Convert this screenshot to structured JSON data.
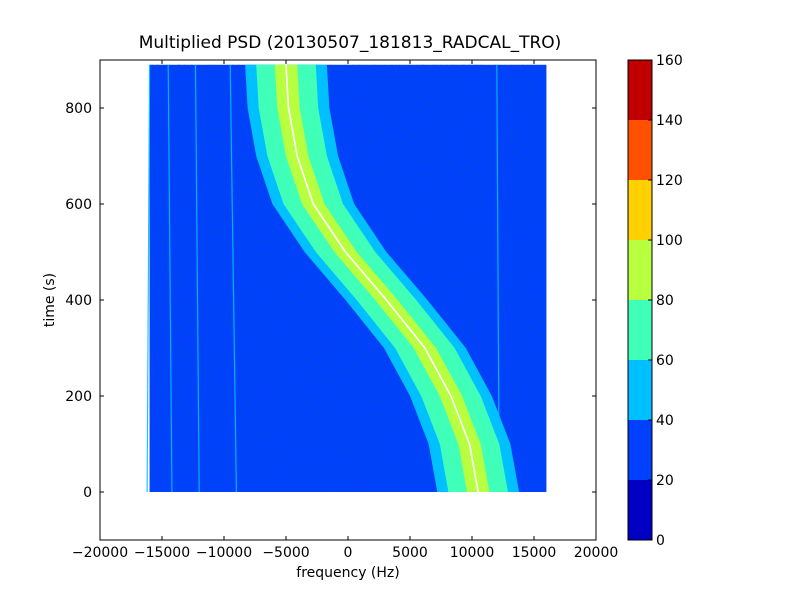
{
  "chart_data": [
    {
      "type": "heatmap",
      "title": "Multiplied PSD (20130507_181813_RADCAL_TRO)",
      "xlabel": "frequency (Hz)",
      "ylabel": "time (s)",
      "xlim": [
        -20000,
        20000
      ],
      "ylim": [
        -100,
        900
      ],
      "xticks": [
        -20000,
        -15000,
        -10000,
        -5000,
        0,
        5000,
        10000,
        15000,
        20000
      ],
      "yticks": [
        0,
        200,
        400,
        600,
        800
      ],
      "data_extent": {
        "x": [
          -16000,
          16000
        ],
        "y": [
          0,
          890
        ]
      },
      "grid": false,
      "colormap": "jet",
      "background_level": 20,
      "signal_track": {
        "description": "S-shaped Doppler track",
        "center_points": [
          {
            "time": 0,
            "frequency": 10500
          },
          {
            "time": 100,
            "frequency": 9800
          },
          {
            "time": 200,
            "frequency": 8300
          },
          {
            "time": 300,
            "frequency": 6200
          },
          {
            "time": 400,
            "frequency": 3100
          },
          {
            "time": 500,
            "frequency": -200
          },
          {
            "time": 600,
            "frequency": -2800
          },
          {
            "time": 700,
            "frequency": -4100
          },
          {
            "time": 800,
            "frequency": -4800
          },
          {
            "time": 890,
            "frequency": -5000
          }
        ],
        "band_levels": [
          {
            "half_width_hz": 3300,
            "level": 50
          },
          {
            "half_width_hz": 2400,
            "level": 70
          },
          {
            "half_width_hz": 900,
            "level": 85
          }
        ],
        "peak_level": 100
      },
      "vertical_lines": [
        {
          "freq_start": -16200,
          "freq_end": -16000,
          "level": 40
        },
        {
          "freq_start": -14200,
          "freq_end": -14500,
          "level": 40
        },
        {
          "freq_start": -12000,
          "freq_end": -12300,
          "level": 40
        },
        {
          "freq_start": -9000,
          "freq_end": -9500,
          "level": 50
        },
        {
          "freq_start": 12200,
          "freq_end": 12000,
          "level": 40
        }
      ],
      "colorbar": {
        "min": 0,
        "max": 160,
        "ticks": [
          "0",
          "20",
          "40",
          "60",
          "80",
          "100",
          "120",
          "140",
          "160"
        ],
        "levels": [
          {
            "from": 0,
            "to": 20,
            "color": "#0000c4"
          },
          {
            "from": 20,
            "to": 40,
            "color": "#0040ff"
          },
          {
            "from": 40,
            "to": 60,
            "color": "#00c0ff"
          },
          {
            "from": 60,
            "to": 80,
            "color": "#40ffb8"
          },
          {
            "from": 80,
            "to": 100,
            "color": "#b8ff40"
          },
          {
            "from": 100,
            "to": 120,
            "color": "#ffd000"
          },
          {
            "from": 120,
            "to": 140,
            "color": "#ff5000"
          },
          {
            "from": 140,
            "to": 160,
            "color": "#c00000"
          }
        ]
      }
    }
  ]
}
